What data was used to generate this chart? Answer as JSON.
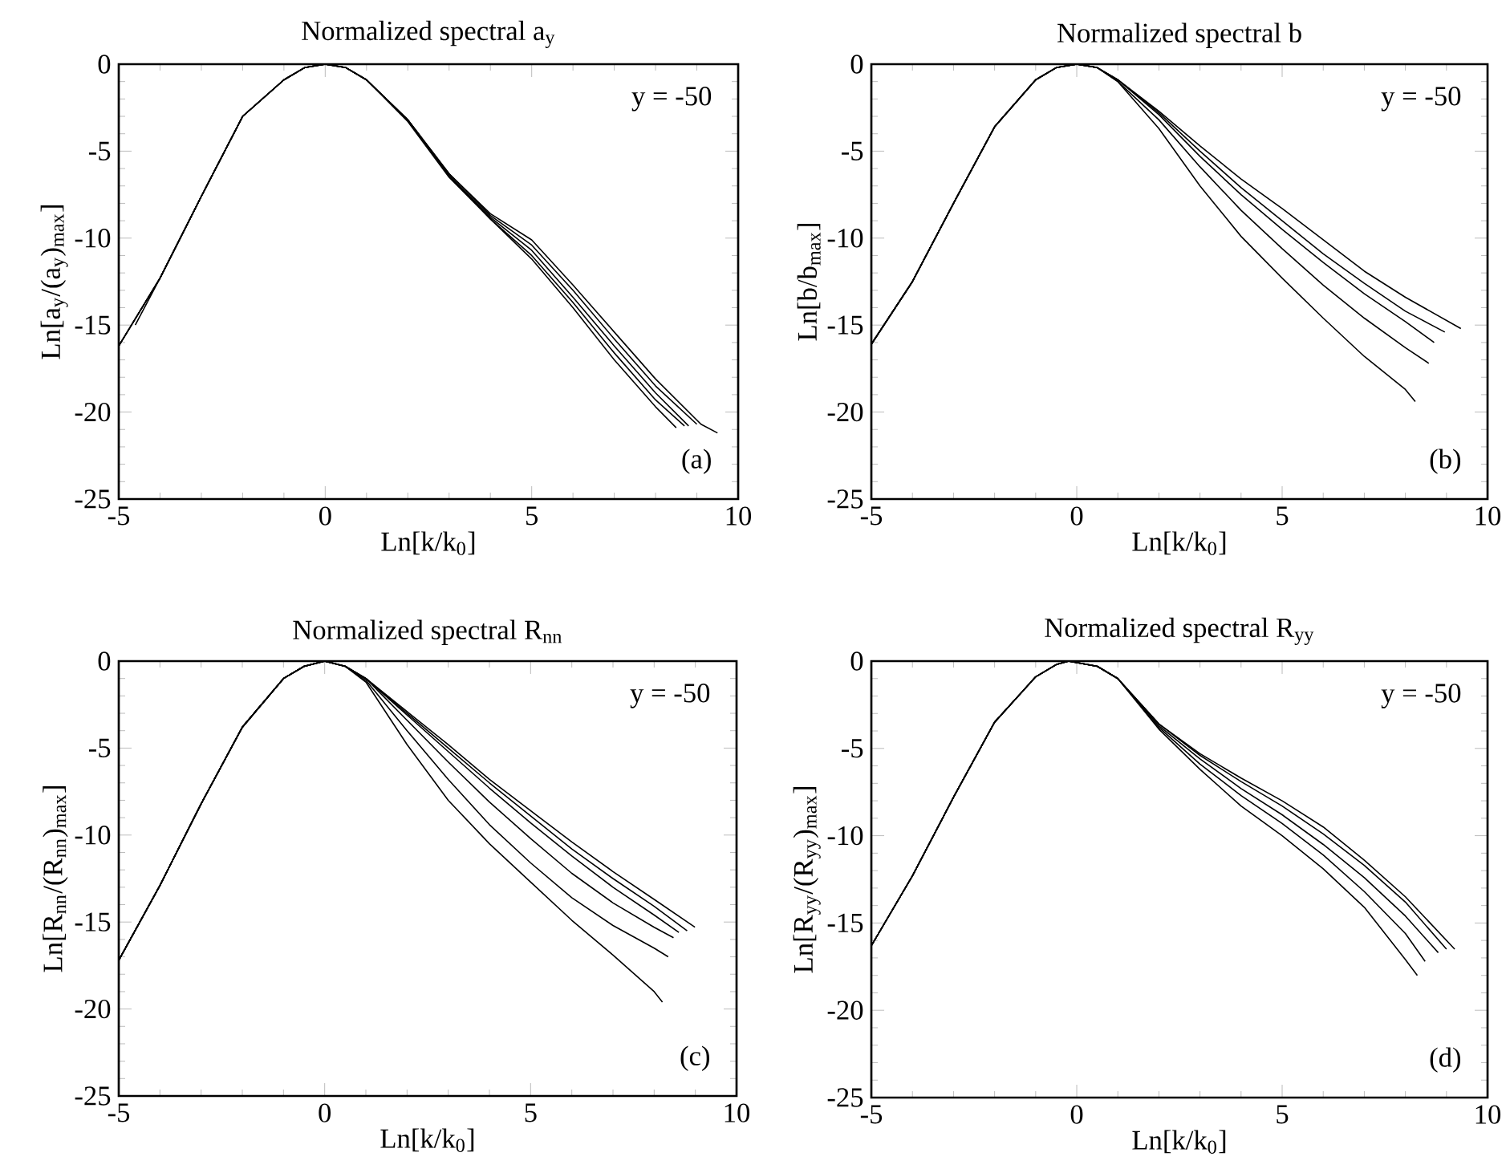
{
  "chart_data": [
    {
      "type": "line",
      "title": "Normalized spectral a$_{y}$",
      "xlabel": "Ln[k/k$_{0}$]",
      "ylabel": "Ln[a$_{y}$/(a$_{y}$)$_{max}$]",
      "annotations": [
        "y = -50",
        "(a)"
      ],
      "xlim": [
        -5,
        10
      ],
      "ylim": [
        -25,
        0
      ],
      "xticks": [
        -5,
        0,
        5,
        10
      ],
      "yticks": [
        -25,
        -20,
        -15,
        -10,
        -5,
        0
      ],
      "series": [
        {
          "color": "#000000",
          "x": [
            -5,
            -4,
            -3,
            -2,
            -1,
            -0.5,
            0,
            0.5,
            1,
            2,
            3,
            4,
            5,
            6,
            7,
            8,
            9.1,
            9.5
          ],
          "values": [
            -16.2,
            -12.3,
            -7.6,
            -3.0,
            -0.9,
            -0.2,
            0,
            -0.2,
            -0.9,
            -3.2,
            -6.3,
            -8.6,
            -10.1,
            -12.7,
            -15.4,
            -18.1,
            -20.7,
            -21.2
          ]
        },
        {
          "color": "#000000",
          "x": [
            -4.6,
            -4,
            -3,
            -2,
            -1,
            -0.5,
            0,
            0.5,
            1,
            2,
            3,
            4,
            5,
            6,
            7,
            8,
            9.0
          ],
          "values": [
            -15.0,
            -12.3,
            -7.6,
            -3.0,
            -0.9,
            -0.2,
            0,
            -0.2,
            -0.9,
            -3.2,
            -6.3,
            -8.7,
            -10.4,
            -13.0,
            -15.8,
            -18.5,
            -20.7
          ]
        },
        {
          "color": "#000000",
          "x": [
            -5,
            -4,
            -3,
            -2,
            -1,
            -0.5,
            0,
            0.5,
            1,
            2,
            3,
            4,
            5,
            6,
            7,
            8,
            8.8
          ],
          "values": [
            -16.2,
            -12.3,
            -7.6,
            -3.0,
            -0.9,
            -0.2,
            0,
            -0.2,
            -0.9,
            -3.2,
            -6.4,
            -8.8,
            -10.7,
            -13.4,
            -16.2,
            -18.9,
            -20.8
          ]
        },
        {
          "color": "#000000",
          "x": [
            -5,
            -4,
            -3,
            -2,
            -1,
            -0.5,
            0,
            0.5,
            1,
            2,
            3,
            4,
            5,
            6,
            7,
            8,
            8.7
          ],
          "values": [
            -16.2,
            -12.3,
            -7.6,
            -3.0,
            -0.9,
            -0.2,
            0,
            -0.2,
            -0.9,
            -3.2,
            -6.4,
            -8.9,
            -11.0,
            -13.7,
            -16.6,
            -19.3,
            -20.8
          ]
        },
        {
          "color": "#000000",
          "x": [
            -5,
            -4,
            -3,
            -2,
            -1,
            -0.5,
            0,
            0.5,
            1,
            2,
            3,
            4,
            5,
            6,
            7,
            8,
            8.5
          ],
          "values": [
            -16.2,
            -12.3,
            -7.6,
            -3.0,
            -0.9,
            -0.2,
            0,
            -0.2,
            -0.9,
            -3.3,
            -6.5,
            -8.9,
            -11.2,
            -14.0,
            -17.0,
            -19.7,
            -20.9
          ]
        }
      ]
    },
    {
      "type": "line",
      "title": "Normalized spectral b",
      "xlabel": "Ln[k/k$_{0}$]",
      "ylabel": "Ln[b/b$_{max}$]",
      "annotations": [
        "y = -50",
        "(b)"
      ],
      "xlim": [
        -5,
        10
      ],
      "ylim": [
        -25,
        0
      ],
      "xticks": [
        -5,
        0,
        5,
        10
      ],
      "yticks": [
        -25,
        -20,
        -15,
        -10,
        -5,
        0
      ],
      "series": [
        {
          "color": "#000000",
          "x": [
            -5,
            -4,
            -3,
            -2,
            -1,
            -0.5,
            0,
            0.5,
            1,
            2,
            3,
            4,
            5,
            6,
            7,
            8,
            9.35
          ],
          "values": [
            -16.1,
            -12.5,
            -8.0,
            -3.6,
            -0.9,
            -0.2,
            0,
            -0.2,
            -0.9,
            -2.7,
            -4.7,
            -6.6,
            -8.3,
            -10.1,
            -11.9,
            -13.4,
            -15.2
          ]
        },
        {
          "color": "#000000",
          "x": [
            -5,
            -4,
            -3,
            -2,
            -1,
            -0.5,
            0,
            0.5,
            1,
            2,
            3,
            4,
            5,
            6,
            7,
            8,
            8.96
          ],
          "values": [
            -16.1,
            -12.5,
            -8.0,
            -3.6,
            -0.9,
            -0.2,
            0,
            -0.2,
            -0.9,
            -2.8,
            -5.0,
            -7.1,
            -9.0,
            -10.9,
            -12.6,
            -14.2,
            -15.4
          ]
        },
        {
          "color": "#000000",
          "x": [
            -5,
            -4,
            -3,
            -2,
            -1,
            -0.5,
            0,
            0.5,
            1,
            2,
            3,
            4,
            5,
            6,
            7,
            8,
            8.7
          ],
          "values": [
            -16.1,
            -12.5,
            -8.0,
            -3.6,
            -0.9,
            -0.2,
            0,
            -0.2,
            -0.9,
            -2.9,
            -5.3,
            -7.5,
            -9.5,
            -11.4,
            -13.2,
            -14.8,
            -16.0
          ]
        },
        {
          "color": "#000000",
          "x": [
            -5,
            -4,
            -3,
            -2,
            -1,
            -0.5,
            0,
            0.5,
            1,
            2,
            3,
            4,
            5,
            6,
            7,
            8,
            8.57
          ],
          "values": [
            -16.1,
            -12.5,
            -8.0,
            -3.6,
            -0.9,
            -0.2,
            0,
            -0.2,
            -1.0,
            -3.2,
            -5.9,
            -8.4,
            -10.6,
            -12.7,
            -14.6,
            -16.3,
            -17.2
          ]
        },
        {
          "color": "#000000",
          "x": [
            -5,
            -4,
            -3,
            -2,
            -1,
            -0.5,
            0,
            0.5,
            1,
            2,
            3,
            4,
            5,
            6,
            7,
            8,
            8.24
          ],
          "values": [
            -16.1,
            -12.5,
            -8.0,
            -3.6,
            -0.9,
            -0.2,
            0,
            -0.2,
            -1.0,
            -3.7,
            -7.0,
            -9.9,
            -12.3,
            -14.6,
            -16.8,
            -18.7,
            -19.4
          ]
        }
      ]
    },
    {
      "type": "line",
      "title": "Normalized spectral R$_{nn}$",
      "xlabel": "Ln[k/k$_{0}$]",
      "ylabel": "Ln[R$_{nn}$/(R$_{nn}$)$_{max}$]",
      "annotations": [
        "y = -50",
        "(c)"
      ],
      "xlim": [
        -5,
        10
      ],
      "ylim": [
        -25,
        0
      ],
      "xticks": [
        -5,
        0,
        5,
        10
      ],
      "yticks": [
        -25,
        -20,
        -15,
        -10,
        -5,
        0
      ],
      "series": [
        {
          "color": "#000000",
          "x": [
            -5,
            -4,
            -3,
            -2,
            -1,
            -0.5,
            0,
            0.5,
            1,
            2,
            3,
            4,
            5,
            6,
            7,
            8,
            8.99
          ],
          "values": [
            -17.2,
            -12.9,
            -8.2,
            -3.8,
            -1.0,
            -0.3,
            0,
            -0.3,
            -1.0,
            -2.9,
            -4.8,
            -6.8,
            -8.6,
            -10.4,
            -12.1,
            -13.7,
            -15.3
          ]
        },
        {
          "color": "#000000",
          "x": [
            -5,
            -4,
            -3,
            -2,
            -1,
            -0.5,
            0,
            0.5,
            1,
            2,
            3,
            4,
            5,
            6,
            7,
            8,
            8.8
          ],
          "values": [
            -17.2,
            -12.9,
            -8.2,
            -3.8,
            -1.0,
            -0.3,
            0,
            -0.3,
            -1.0,
            -3.0,
            -5.0,
            -7.0,
            -8.9,
            -10.8,
            -12.5,
            -14.1,
            -15.5
          ]
        },
        {
          "color": "#000000",
          "x": [
            -5,
            -4,
            -3,
            -2,
            -1,
            -0.5,
            0,
            0.5,
            1,
            2,
            3,
            4,
            5,
            6,
            7,
            8,
            8.6
          ],
          "values": [
            -17.2,
            -12.9,
            -8.2,
            -3.8,
            -1.0,
            -0.3,
            0,
            -0.3,
            -1.0,
            -3.1,
            -5.2,
            -7.3,
            -9.3,
            -11.2,
            -13.0,
            -14.6,
            -15.6
          ]
        },
        {
          "color": "#000000",
          "x": [
            -5,
            -4,
            -3,
            -2,
            -1,
            -0.5,
            0,
            0.5,
            1,
            2,
            3,
            4,
            5,
            6,
            7,
            8,
            8.47
          ],
          "values": [
            -17.2,
            -12.9,
            -8.2,
            -3.8,
            -1.0,
            -0.3,
            0,
            -0.3,
            -1.0,
            -3.4,
            -5.8,
            -8.1,
            -10.2,
            -12.2,
            -13.9,
            -15.3,
            -15.9
          ]
        },
        {
          "color": "#000000",
          "x": [
            -5,
            -4,
            -3,
            -2,
            -1,
            -0.5,
            0,
            0.5,
            1,
            2,
            3,
            4,
            5,
            6,
            7,
            8,
            8.34
          ],
          "values": [
            -17.2,
            -12.9,
            -8.2,
            -3.8,
            -1.0,
            -0.3,
            0,
            -0.3,
            -1.1,
            -4.0,
            -6.8,
            -9.4,
            -11.6,
            -13.6,
            -15.2,
            -16.5,
            -17.0
          ]
        },
        {
          "color": "#000000",
          "x": [
            -5,
            -4,
            -3,
            -2,
            -1,
            -0.5,
            0,
            0.5,
            1,
            2,
            3,
            4,
            5,
            6,
            7,
            8,
            8.2
          ],
          "values": [
            -17.2,
            -12.9,
            -8.2,
            -3.8,
            -1.0,
            -0.3,
            0,
            -0.3,
            -1.2,
            -4.8,
            -8.0,
            -10.5,
            -12.7,
            -14.9,
            -16.9,
            -19.0,
            -19.6
          ]
        }
      ]
    },
    {
      "type": "line",
      "title": "Normalized spectral R$_{yy}$",
      "xlabel": "Ln[k/k$_{0}$]",
      "ylabel": "Ln[R$_{yy}$/(R$_{yy}$)$_{max}$]",
      "annotations": [
        "y = -50",
        "(d)"
      ],
      "xlim": [
        -5,
        10
      ],
      "ylim": [
        -25,
        0
      ],
      "xticks": [
        -5,
        0,
        5,
        10
      ],
      "yticks": [
        -25,
        -20,
        -15,
        -10,
        -5,
        0
      ],
      "series": [
        {
          "color": "#000000",
          "x": [
            -5,
            -4,
            -3,
            -2,
            -1,
            -0.5,
            -0.2,
            0.5,
            1,
            2,
            3,
            4,
            5,
            6,
            7,
            8,
            9.2
          ],
          "values": [
            -16.3,
            -12.3,
            -7.8,
            -3.5,
            -0.9,
            -0.2,
            0,
            -0.3,
            -1.0,
            -3.6,
            -5.3,
            -6.7,
            -8.0,
            -9.5,
            -11.4,
            -13.5,
            -16.5
          ]
        },
        {
          "color": "#000000",
          "x": [
            -5,
            -4,
            -3,
            -2,
            -1,
            -0.5,
            -0.2,
            0.5,
            1,
            2,
            3,
            4,
            5,
            6,
            7,
            8,
            9.0
          ],
          "values": [
            -16.3,
            -12.3,
            -7.8,
            -3.5,
            -0.9,
            -0.2,
            0,
            -0.3,
            -1.0,
            -3.6,
            -5.4,
            -6.9,
            -8.3,
            -9.9,
            -11.7,
            -13.8,
            -16.5
          ]
        },
        {
          "color": "#000000",
          "x": [
            -5,
            -4,
            -3,
            -2,
            -1,
            -0.5,
            -0.2,
            0.5,
            1,
            2,
            3,
            4,
            5,
            6,
            7,
            8,
            8.8
          ],
          "values": [
            -16.3,
            -12.3,
            -7.8,
            -3.5,
            -0.9,
            -0.2,
            0,
            -0.3,
            -1.0,
            -3.7,
            -5.6,
            -7.3,
            -8.8,
            -10.5,
            -12.4,
            -14.6,
            -16.7
          ]
        },
        {
          "color": "#000000",
          "x": [
            -5,
            -4,
            -3,
            -2,
            -1,
            -0.5,
            -0.2,
            0.5,
            1,
            2,
            3,
            4,
            5,
            6,
            7,
            8,
            8.48
          ],
          "values": [
            -16.3,
            -12.3,
            -7.8,
            -3.5,
            -0.9,
            -0.2,
            0,
            -0.3,
            -1.0,
            -3.8,
            -5.9,
            -7.7,
            -9.3,
            -11.1,
            -13.2,
            -15.6,
            -17.2
          ]
        },
        {
          "color": "#000000",
          "x": [
            -5,
            -4,
            -3,
            -2,
            -1,
            -0.5,
            -0.2,
            0.5,
            1,
            2,
            3,
            4,
            5,
            6,
            7,
            8,
            8.29
          ],
          "values": [
            -16.3,
            -12.3,
            -7.8,
            -3.5,
            -0.9,
            -0.2,
            0,
            -0.3,
            -1.0,
            -3.9,
            -6.2,
            -8.3,
            -10.0,
            -11.9,
            -14.1,
            -17.1,
            -18.0
          ]
        }
      ]
    }
  ]
}
